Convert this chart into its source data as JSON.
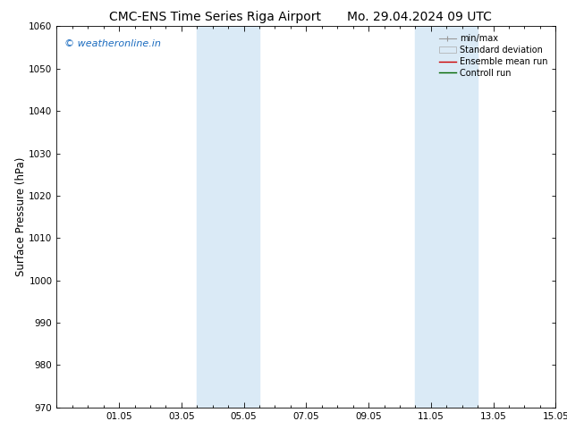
{
  "title_left": "CMC-ENS Time Series Riga Airport",
  "title_right": "Mo. 29.04.2024 09 UTC",
  "ylabel": "Surface Pressure (hPa)",
  "watermark": "© weatheronline.in",
  "ylim": [
    970,
    1060
  ],
  "yticks": [
    970,
    980,
    990,
    1000,
    1010,
    1020,
    1030,
    1040,
    1050,
    1060
  ],
  "xlim": [
    0,
    16
  ],
  "xtick_labels": [
    "01.05",
    "03.05",
    "05.05",
    "07.05",
    "09.05",
    "11.05",
    "13.05",
    "15.05"
  ],
  "xtick_positions": [
    2,
    4,
    6,
    8,
    10,
    12,
    14,
    16
  ],
  "shaded_bands": [
    {
      "x_start": 4.5,
      "x_end": 6.5
    },
    {
      "x_start": 11.5,
      "x_end": 13.5
    }
  ],
  "shaded_color": "#daeaf6",
  "legend_labels": [
    "min/max",
    "Standard deviation",
    "Ensemble mean run",
    "Controll run"
  ],
  "background_color": "#ffffff",
  "plot_bg_color": "#ffffff",
  "title_fontsize": 10,
  "tick_fontsize": 7.5,
  "ylabel_fontsize": 8.5,
  "watermark_color": "#1a6bbf",
  "watermark_fontsize": 8,
  "legend_fontsize": 7
}
